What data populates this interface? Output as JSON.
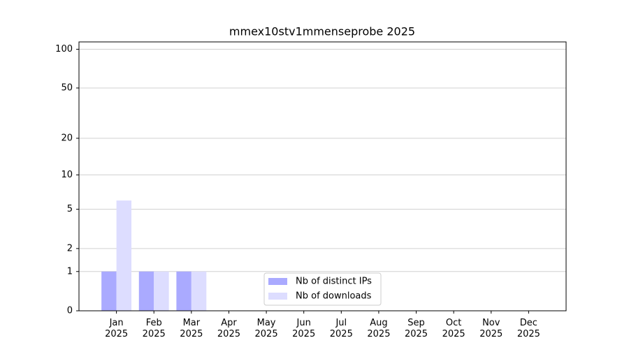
{
  "chart_data": {
    "type": "bar",
    "title": "mmex10stv1mmenseprobe 2025",
    "categories": [
      "Jan\n2025",
      "Feb\n2025",
      "Mar\n2025",
      "Apr\n2025",
      "May\n2025",
      "Jun\n2025",
      "Jul\n2025",
      "Aug\n2025",
      "Sep\n2025",
      "Oct\n2025",
      "Nov\n2025",
      "Dec\n2025"
    ],
    "series": [
      {
        "name": "Nb of distinct IPs",
        "color": "#aaaaff",
        "values": [
          1,
          1,
          1,
          0,
          0,
          0,
          0,
          0,
          0,
          0,
          0,
          0
        ]
      },
      {
        "name": "Nb of downloads",
        "color": "#ddddff",
        "values": [
          6,
          1,
          1,
          0,
          0,
          0,
          0,
          0,
          0,
          0,
          0,
          0
        ]
      }
    ],
    "yscale": "log1p",
    "ylim": [
      0,
      114
    ],
    "yticks": [
      0,
      1,
      2,
      5,
      10,
      20,
      50,
      100
    ],
    "grid": true,
    "legend": "lower center"
  }
}
